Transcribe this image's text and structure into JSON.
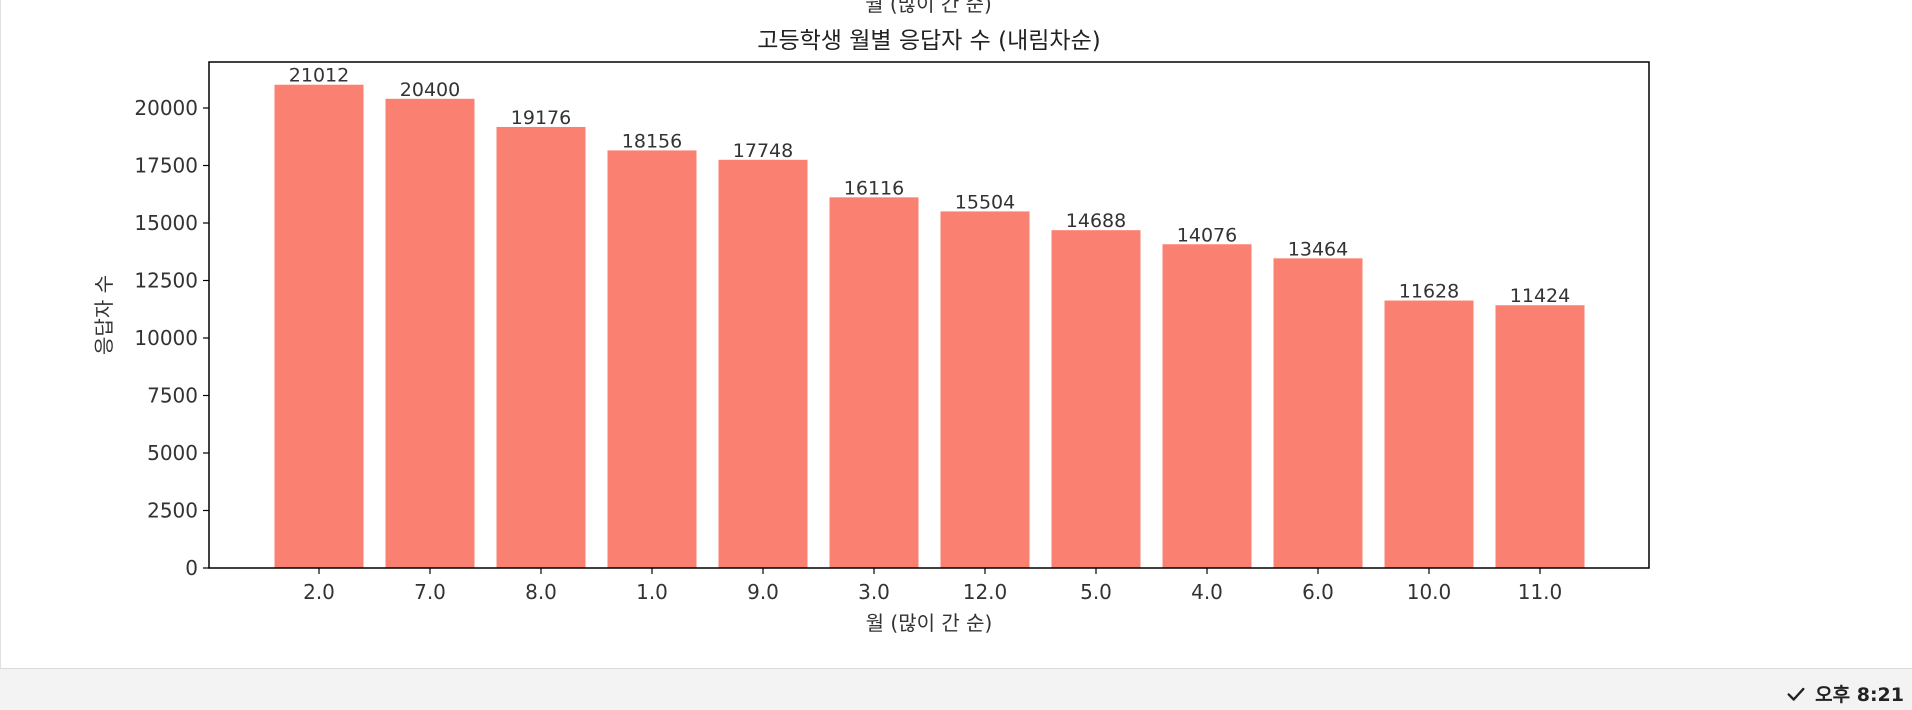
{
  "previous_output": {
    "clipped_label": "월 (많이 간 순)"
  },
  "chart_data": {
    "type": "bar",
    "title": "고등학생 월별 응답자 수 (내림차순)",
    "xlabel": "월 (많이 간 순)",
    "ylabel": "응답자 수",
    "categories": [
      "2.0",
      "7.0",
      "8.0",
      "1.0",
      "9.0",
      "3.0",
      "12.0",
      "5.0",
      "4.0",
      "6.0",
      "10.0",
      "11.0"
    ],
    "values": [
      21012,
      20400,
      19176,
      18156,
      17748,
      16116,
      15504,
      14688,
      14076,
      13464,
      11628,
      11424
    ],
    "ylim": [
      0,
      22000
    ],
    "yticks": [
      0,
      2500,
      5000,
      7500,
      10000,
      12500,
      15000,
      17500,
      20000
    ],
    "bar_color": "#fa8072",
    "grid": false,
    "data_labels": true
  },
  "status_bar": {
    "time": "오후 8:21",
    "status_icon": "check-icon"
  }
}
